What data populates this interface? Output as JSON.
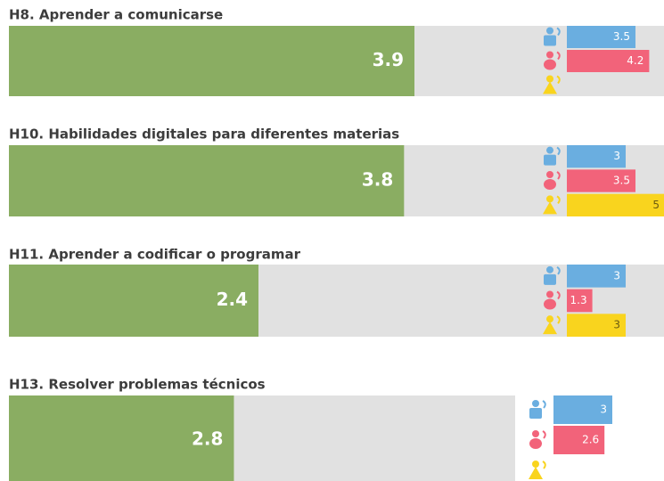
{
  "chart_data": [
    {
      "type": "bar",
      "title": "H8. Aprender a comunicarse",
      "value": 3.9,
      "color": "#8aad62",
      "xlim": [
        0,
        6.3
      ],
      "sub": {
        "values": [
          3.5,
          4.2,
          null
        ],
        "colors": [
          "#6aaee0",
          "#f2637a",
          "#f9d41e"
        ],
        "xlim": [
          0,
          5
        ]
      }
    },
    {
      "type": "bar",
      "title": "H10. Habilidades digitales para diferentes materias",
      "value": 3.8,
      "color": "#8aad62",
      "xlim": [
        0,
        6.3
      ],
      "sub": {
        "values": [
          3,
          3.5,
          5
        ],
        "colors": [
          "#6aaee0",
          "#f2637a",
          "#f9d41e"
        ],
        "xlim": [
          0,
          5
        ]
      }
    },
    {
      "type": "bar",
      "title": "H11. Aprender a codificar o programar",
      "value": 2.4,
      "color": "#8aad62",
      "xlim": [
        0,
        6.3
      ],
      "sub": {
        "values": [
          3,
          1.3,
          3
        ],
        "colors": [
          "#6aaee0",
          "#f2637a",
          "#f9d41e"
        ],
        "xlim": [
          0,
          5
        ]
      }
    },
    {
      "type": "bar",
      "title": "H13. Resolver problemas técnicos",
      "value": 2.8,
      "color": "#8aad62",
      "xlim": [
        0,
        6.3
      ],
      "sub": {
        "values": [
          3,
          2.6,
          null
        ],
        "colors": [
          "#6aaee0",
          "#f2637a",
          "#f9d41e"
        ],
        "xlim": [
          0,
          5
        ]
      }
    }
  ]
}
